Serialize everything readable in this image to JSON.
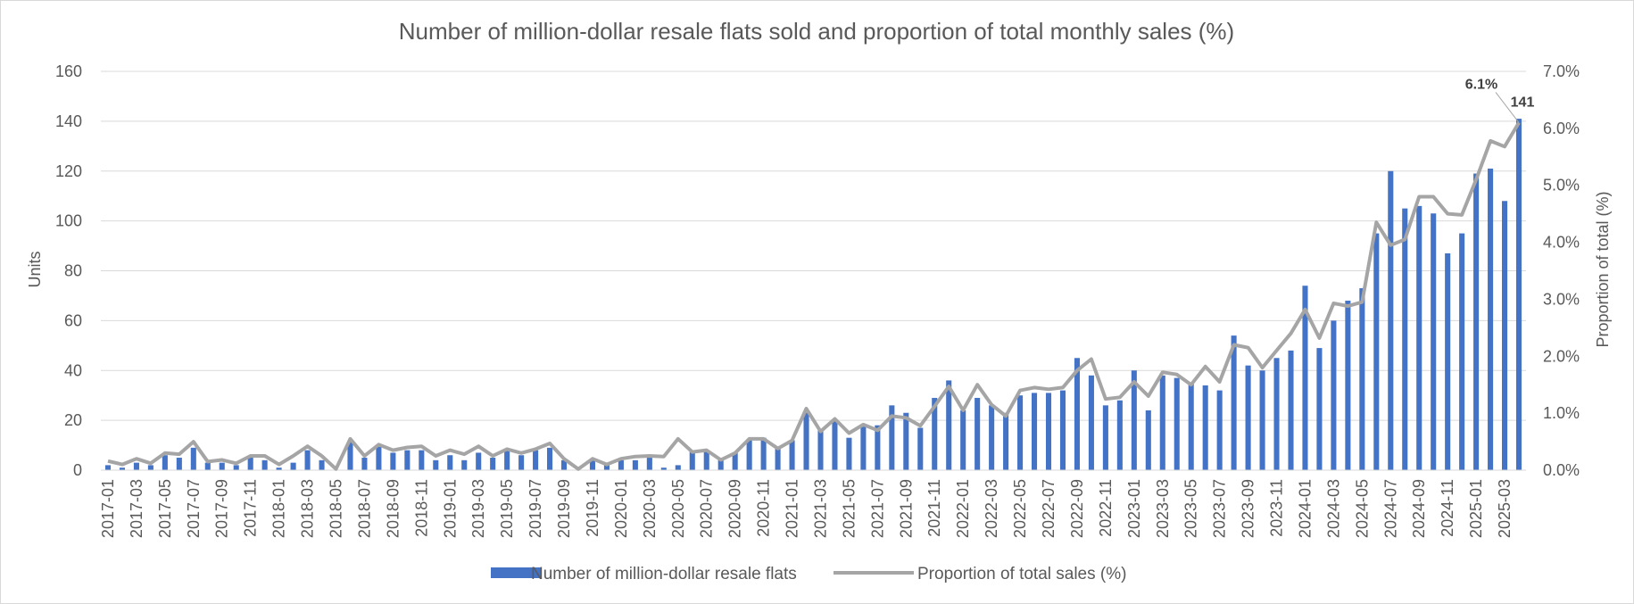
{
  "chart_data": {
    "type": "bar+line",
    "title": "Number of million-dollar resale flats sold and proportion of total monthly sales (%)",
    "ylabel": "Units",
    "y2label": "Proportion of total (%)",
    "ylim": [
      0,
      160
    ],
    "yticks": [
      "0",
      "20",
      "40",
      "60",
      "80",
      "100",
      "120",
      "140",
      "160"
    ],
    "y2lim": [
      0,
      7
    ],
    "y2ticks": [
      "0.0%",
      "1.0%",
      "2.0%",
      "3.0%",
      "4.0%",
      "5.0%",
      "6.0%",
      "7.0%"
    ],
    "grid": true,
    "legend_position": "bottom",
    "x": [
      "2017-01",
      "2017-02",
      "2017-03",
      "2017-04",
      "2017-05",
      "2017-06",
      "2017-07",
      "2017-08",
      "2017-09",
      "2017-10",
      "2017-11",
      "2017-12",
      "2018-01",
      "2018-02",
      "2018-03",
      "2018-04",
      "2018-05",
      "2018-06",
      "2018-07",
      "2018-08",
      "2018-09",
      "2018-10",
      "2018-11",
      "2018-12",
      "2019-01",
      "2019-02",
      "2019-03",
      "2019-04",
      "2019-05",
      "2019-06",
      "2019-07",
      "2019-08",
      "2019-09",
      "2019-10",
      "2019-11",
      "2019-12",
      "2020-01",
      "2020-02",
      "2020-03",
      "2020-04",
      "2020-05",
      "2020-06",
      "2020-07",
      "2020-08",
      "2020-09",
      "2020-10",
      "2020-11",
      "2020-12",
      "2021-01",
      "2021-02",
      "2021-03",
      "2021-04",
      "2021-05",
      "2021-06",
      "2021-07",
      "2021-08",
      "2021-09",
      "2021-10",
      "2021-11",
      "2021-12",
      "2022-01",
      "2022-02",
      "2022-03",
      "2022-04",
      "2022-05",
      "2022-06",
      "2022-07",
      "2022-08",
      "2022-09",
      "2022-10",
      "2022-11",
      "2022-12",
      "2023-01",
      "2023-02",
      "2023-03",
      "2023-04",
      "2023-05",
      "2023-06",
      "2023-07",
      "2023-08",
      "2023-09",
      "2023-10",
      "2023-11",
      "2023-12",
      "2024-01",
      "2024-02",
      "2024-03",
      "2024-04",
      "2024-05",
      "2024-06",
      "2024-07",
      "2024-08",
      "2024-09",
      "2024-10",
      "2024-11",
      "2024-12",
      "2025-01",
      "2025-02",
      "2025-03",
      "2025-04"
    ],
    "xtick_labels": [
      "2017-01",
      "2017-03",
      "2017-05",
      "2017-07",
      "2017-09",
      "2017-11",
      "2018-01",
      "2018-03",
      "2018-05",
      "2018-07",
      "2018-09",
      "2018-11",
      "2019-01",
      "2019-03",
      "2019-05",
      "2019-07",
      "2019-09",
      "2019-11",
      "2020-01",
      "2020-03",
      "2020-05",
      "2020-07",
      "2020-09",
      "2020-11",
      "2021-01",
      "2021-03",
      "2021-05",
      "2021-07",
      "2021-09",
      "2021-11",
      "2022-01",
      "2022-03",
      "2022-05",
      "2022-07",
      "2022-09",
      "2022-11",
      "2023-01",
      "2023-03",
      "2023-05",
      "2023-07",
      "2023-09",
      "2023-11",
      "2024-01",
      "2024-03",
      "2024-05",
      "2024-07",
      "2024-09",
      "2024-11",
      "2025-01",
      "2025-03"
    ],
    "series": [
      {
        "name": "Number of million-dollar resale flats",
        "type": "bar",
        "color": "#4472c4",
        "axis": "left",
        "values": [
          2,
          1,
          3,
          2,
          6,
          5,
          9,
          3,
          3,
          2,
          5,
          4,
          1,
          3,
          8,
          4,
          0,
          12,
          5,
          10,
          7,
          8,
          8,
          4,
          6,
          4,
          7,
          5,
          8,
          6,
          8,
          9,
          4,
          0,
          4,
          2,
          4,
          4,
          5,
          1,
          2,
          8,
          8,
          4,
          7,
          12,
          13,
          9,
          12,
          23,
          16,
          20,
          13,
          18,
          18,
          26,
          23,
          17,
          29,
          36,
          24,
          29,
          26,
          23,
          30,
          31,
          31,
          32,
          45,
          38,
          26,
          28,
          40,
          24,
          38,
          37,
          35,
          34,
          32,
          54,
          42,
          40,
          45,
          48,
          74,
          49,
          60,
          68,
          73,
          95,
          120,
          105,
          106,
          103,
          87,
          95,
          119,
          121,
          108,
          141
        ]
      },
      {
        "name": "Proportion of total sales (%)",
        "type": "line",
        "color": "#a5a5a5",
        "axis": "right",
        "values": [
          0.16,
          0.1,
          0.2,
          0.12,
          0.3,
          0.28,
          0.5,
          0.15,
          0.18,
          0.12,
          0.25,
          0.25,
          0.1,
          0.25,
          0.42,
          0.25,
          0.02,
          0.55,
          0.25,
          0.45,
          0.35,
          0.4,
          0.42,
          0.25,
          0.35,
          0.28,
          0.42,
          0.25,
          0.37,
          0.3,
          0.37,
          0.47,
          0.2,
          0.02,
          0.2,
          0.1,
          0.2,
          0.24,
          0.25,
          0.24,
          0.55,
          0.32,
          0.35,
          0.18,
          0.3,
          0.55,
          0.55,
          0.38,
          0.52,
          1.08,
          0.68,
          0.9,
          0.65,
          0.8,
          0.7,
          0.95,
          0.92,
          0.78,
          1.12,
          1.47,
          1.05,
          1.5,
          1.15,
          0.95,
          1.4,
          1.45,
          1.42,
          1.45,
          1.75,
          1.95,
          1.25,
          1.28,
          1.55,
          1.3,
          1.72,
          1.68,
          1.5,
          1.82,
          1.55,
          2.2,
          2.15,
          1.8,
          2.1,
          2.4,
          2.82,
          2.32,
          2.93,
          2.88,
          2.95,
          4.35,
          3.95,
          4.05,
          4.8,
          4.8,
          4.5,
          4.48,
          5.1,
          5.78,
          5.68,
          6.1
        ]
      }
    ],
    "annotations": {
      "last_proportion": "6.1%",
      "last_units": "141"
    }
  }
}
